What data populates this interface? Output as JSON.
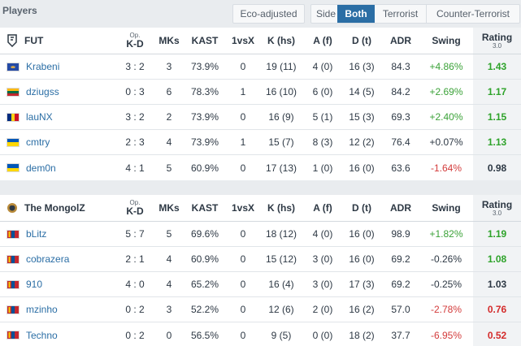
{
  "header": {
    "title": "Players",
    "eco_label": "Eco-adjusted",
    "side_label": "Side",
    "side_options": [
      "Both",
      "Terrorist",
      "Counter-Terrorist"
    ],
    "side_selected": "Both"
  },
  "columns": {
    "op_small": "Op.",
    "kd": "K-D",
    "mks": "MKs",
    "kast": "KAST",
    "clutch": "1vsX",
    "khs": "K (hs)",
    "af": "A (f)",
    "dt": "D (t)",
    "adr": "ADR",
    "swing": "Swing",
    "rating": "Rating",
    "rating_version": "3.0"
  },
  "colors": {
    "accent": "#2b6ea5",
    "positive": "#3ba238",
    "negative": "#d33b3b",
    "rating_good": "#2ea32a",
    "rating_bad": "#d42b2b"
  },
  "teams": [
    {
      "name": "FUT",
      "logo_icon": "fut-logo-icon",
      "players": [
        {
          "name": "Krabeni",
          "flag": "kosovo-flag",
          "kd": "3 : 2",
          "mks": "3",
          "kast": "73.9%",
          "clutch": "0",
          "khs": "19 (11)",
          "af": "4 (0)",
          "dt": "16 (3)",
          "adr": "84.3",
          "swing": "+4.86%",
          "swing_sign": "pos",
          "rating": "1.43",
          "rating_class": "good"
        },
        {
          "name": "dziugss",
          "flag": "lithuania-flag",
          "kd": "0 : 3",
          "mks": "6",
          "kast": "78.3%",
          "clutch": "1",
          "khs": "16 (10)",
          "af": "6 (0)",
          "dt": "14 (5)",
          "adr": "84.2",
          "swing": "+2.69%",
          "swing_sign": "pos",
          "rating": "1.17",
          "rating_class": "good"
        },
        {
          "name": "lauNX",
          "flag": "romania-flag",
          "kd": "3 : 2",
          "mks": "2",
          "kast": "73.9%",
          "clutch": "0",
          "khs": "16 (9)",
          "af": "5 (1)",
          "dt": "15 (3)",
          "adr": "69.3",
          "swing": "+2.40%",
          "swing_sign": "pos",
          "rating": "1.15",
          "rating_class": "good"
        },
        {
          "name": "cmtry",
          "flag": "ukraine-flag",
          "kd": "2 : 3",
          "mks": "4",
          "kast": "73.9%",
          "clutch": "1",
          "khs": "15 (7)",
          "af": "8 (3)",
          "dt": "12 (2)",
          "adr": "76.4",
          "swing": "+0.07%",
          "swing_sign": "neu",
          "rating": "1.13",
          "rating_class": "good"
        },
        {
          "name": "dem0n",
          "flag": "ukraine-flag",
          "kd": "4 : 1",
          "mks": "5",
          "kast": "60.9%",
          "clutch": "0",
          "khs": "17 (13)",
          "af": "1 (0)",
          "dt": "16 (0)",
          "adr": "63.6",
          "swing": "-1.64%",
          "swing_sign": "neg",
          "rating": "0.98",
          "rating_class": "mid"
        }
      ]
    },
    {
      "name": "The MongolZ",
      "logo_icon": "mongolz-logo-icon",
      "players": [
        {
          "name": "bLitz",
          "flag": "mongolia-flag",
          "kd": "5 : 7",
          "mks": "5",
          "kast": "69.6%",
          "clutch": "0",
          "khs": "18 (12)",
          "af": "4 (0)",
          "dt": "16 (0)",
          "adr": "98.9",
          "swing": "+1.82%",
          "swing_sign": "pos",
          "rating": "1.19",
          "rating_class": "good"
        },
        {
          "name": "cobrazera",
          "flag": "mongolia-flag",
          "kd": "2 : 1",
          "mks": "4",
          "kast": "60.9%",
          "clutch": "0",
          "khs": "15 (12)",
          "af": "3 (0)",
          "dt": "16 (0)",
          "adr": "69.2",
          "swing": "-0.26%",
          "swing_sign": "neu",
          "rating": "1.08",
          "rating_class": "good"
        },
        {
          "name": "910",
          "flag": "mongolia-flag",
          "kd": "4 : 0",
          "mks": "4",
          "kast": "65.2%",
          "clutch": "0",
          "khs": "16 (4)",
          "af": "3 (0)",
          "dt": "17 (3)",
          "adr": "69.2",
          "swing": "-0.25%",
          "swing_sign": "neu",
          "rating": "1.03",
          "rating_class": "mid"
        },
        {
          "name": "mzinho",
          "flag": "mongolia-flag",
          "kd": "0 : 2",
          "mks": "3",
          "kast": "52.2%",
          "clutch": "0",
          "khs": "12 (6)",
          "af": "2 (0)",
          "dt": "16 (2)",
          "adr": "57.0",
          "swing": "-2.78%",
          "swing_sign": "neg",
          "rating": "0.76",
          "rating_class": "bad"
        },
        {
          "name": "Techno",
          "flag": "mongolia-flag",
          "kd": "0 : 2",
          "mks": "0",
          "kast": "56.5%",
          "clutch": "0",
          "khs": "9 (5)",
          "af": "0 (0)",
          "dt": "18 (2)",
          "adr": "37.7",
          "swing": "-6.95%",
          "swing_sign": "neg",
          "rating": "0.52",
          "rating_class": "bad"
        }
      ]
    }
  ]
}
